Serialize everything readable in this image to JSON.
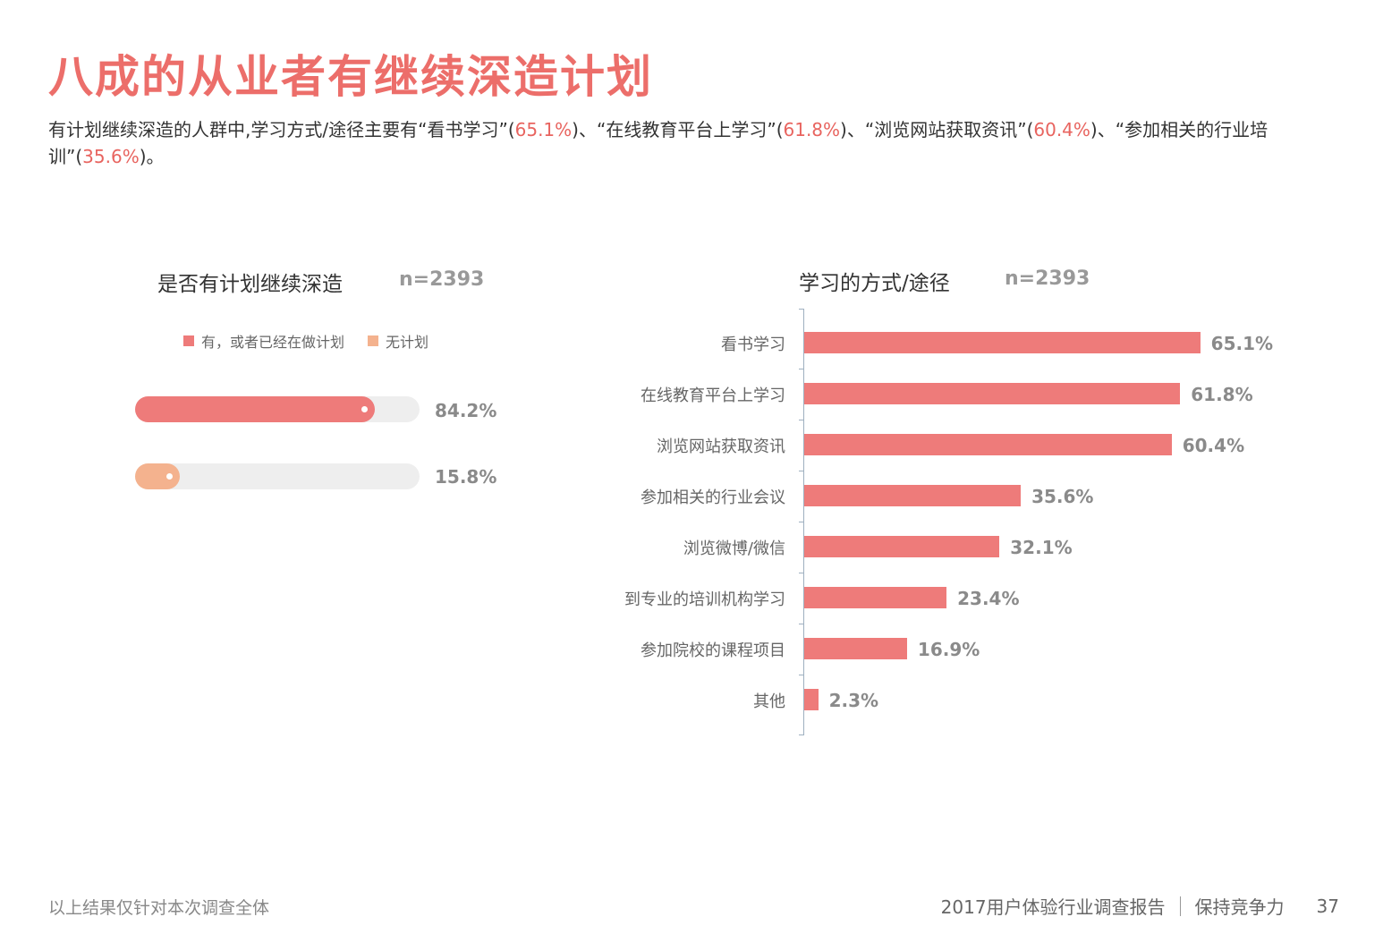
{
  "page": {
    "title": "八成的从业者有继续深造计划",
    "description": {
      "part1": "有计划继续深造的人群中,学习方式/途径主要有“看书学习”(",
      "v1": "65.1%",
      "part2": ")、“在线教育平台上学习”(",
      "v2": "61.8%",
      "part3": ")、“浏览网站获取资讯”(",
      "v3": "60.4%",
      "part4": ")、“参加相关的行业培训”(",
      "v4": "35.6%",
      "part5": ")。"
    },
    "footer": {
      "note": "以上结果仅针对本次调查全体",
      "report": "2017用户体验行业调查报告",
      "slogan": "保持竞争力",
      "page_number": "37"
    }
  },
  "colors": {
    "accent": "#ec6e6a",
    "bar": "#ee7b7a",
    "bar_secondary": "#f4b28e",
    "track": "#eeeeee",
    "axis": "#9fb0c0"
  },
  "chart_data": [
    {
      "type": "bar",
      "title": "是否有计划继续深造",
      "n_label": "n=2393",
      "categories": [
        "有，或者已经在做计划",
        "无计划"
      ],
      "values": [
        84.2,
        15.8
      ],
      "value_labels": [
        "84.2%",
        "15.8%"
      ],
      "xlim": [
        0,
        100
      ],
      "legend": "top",
      "grid": false
    },
    {
      "type": "bar",
      "orientation": "horizontal",
      "title": "学习的方式/途径",
      "n_label": "n=2393",
      "categories": [
        "看书学习",
        "在线教育平台上学习",
        "浏览网站获取资讯",
        "参加相关的行业会议",
        "浏览微博/微信",
        "到专业的培训机构学习",
        "参加院校的课程项目",
        "其他"
      ],
      "values": [
        65.1,
        61.8,
        60.4,
        35.6,
        32.1,
        23.4,
        16.9,
        2.3
      ],
      "value_labels": [
        "65.1%",
        "61.8%",
        "60.4%",
        "35.6%",
        "32.1%",
        "23.4%",
        "16.9%",
        "2.3%"
      ],
      "xlim": [
        0,
        100
      ],
      "grid": false
    }
  ]
}
